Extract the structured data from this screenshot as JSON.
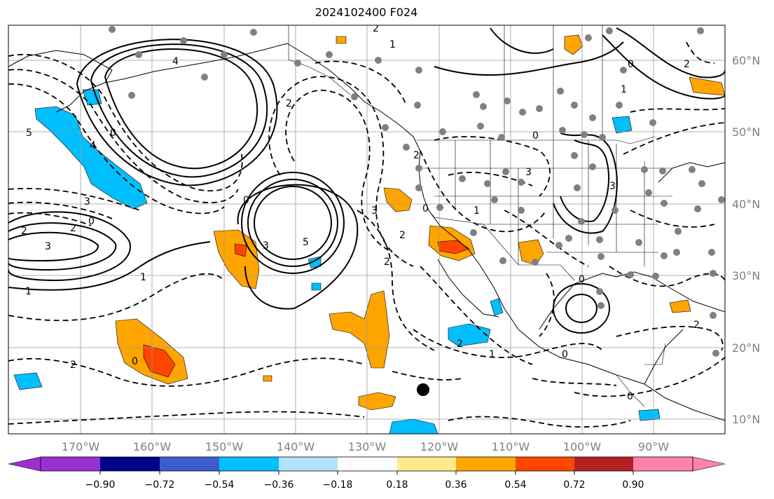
{
  "title": "2024102400 F024",
  "map": {
    "lon_labels": [
      "170°W",
      "160°W",
      "150°W",
      "140°W",
      "130°W",
      "120°W",
      "110°W",
      "100°W",
      "90°W"
    ],
    "lat_labels": [
      "60°N",
      "50°N",
      "40°N",
      "30°N",
      "20°N",
      "10°N"
    ],
    "land_color": "#ffffff",
    "grid_color": "#999999",
    "contour_labels": [
      "5",
      "4",
      "2",
      "0",
      "2",
      "3",
      "0",
      "2",
      "3",
      "1",
      "4",
      "0",
      "3",
      "5",
      "2",
      "1",
      "2",
      "3",
      "0",
      "2",
      "1",
      "0",
      "2",
      "2",
      "0",
      "3",
      "1",
      "0",
      "0",
      "3",
      "0",
      "2",
      "2",
      "1",
      "0",
      "2",
      "1"
    ]
  },
  "colorbar": {
    "ticks": [
      "−0.90",
      "−0.72",
      "−0.54",
      "−0.36",
      "−0.18",
      "0.18",
      "0.36",
      "0.54",
      "0.72",
      "0.90"
    ],
    "colors": [
      "#9b30d0",
      "#00008b",
      "#3a5fcd",
      "#00bfff",
      "#b0e2ff",
      "#ffffff",
      "#ffec8b",
      "#ffa500",
      "#ff4500",
      "#b22222",
      "#ff82ab"
    ]
  }
}
